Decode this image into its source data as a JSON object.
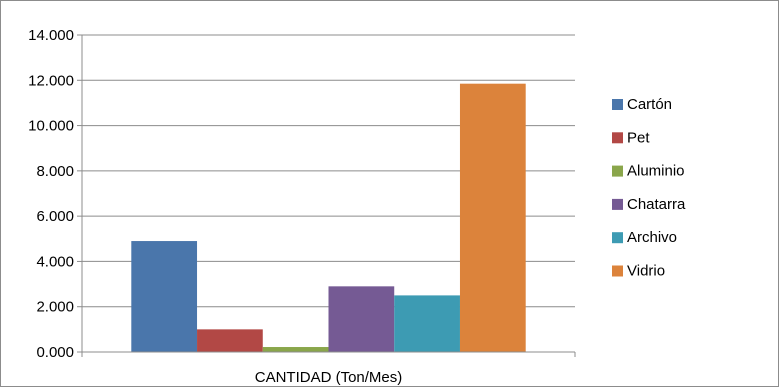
{
  "chart_data": {
    "type": "bar",
    "categories": [
      "CANTIDAD (Ton/Mes)"
    ],
    "series": [
      {
        "name": "Cartón",
        "values": [
          4.9
        ],
        "color": "#4a76ab"
      },
      {
        "name": "Pet",
        "values": [
          1.0
        ],
        "color": "#b24845"
      },
      {
        "name": "Aluminio",
        "values": [
          0.22
        ],
        "color": "#8aa64b"
      },
      {
        "name": "Chatarra",
        "values": [
          2.9
        ],
        "color": "#755a94"
      },
      {
        "name": "Archivo",
        "values": [
          2.5
        ],
        "color": "#3d9bb3"
      },
      {
        "name": "Vidrio",
        "values": [
          11.85
        ],
        "color": "#dc833b"
      }
    ],
    "y_ticks": [
      "0.000",
      "2.000",
      "4.000",
      "6.000",
      "8.000",
      "10.000",
      "12.000",
      "14.000"
    ],
    "ylim": [
      0,
      14
    ],
    "grid": true,
    "legend_position": "right",
    "title": "",
    "xlabel": "",
    "ylabel": ""
  }
}
